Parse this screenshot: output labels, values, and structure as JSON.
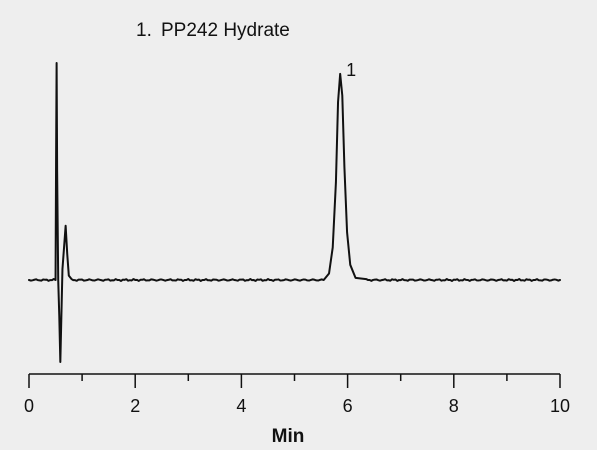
{
  "chart_data": {
    "type": "line",
    "title": "",
    "legend": [
      {
        "number": "1.",
        "name": "PP242 Hydrate"
      }
    ],
    "xlabel": "Min",
    "ylabel": "",
    "xlim": [
      0,
      10
    ],
    "x_major_ticks": [
      0,
      2,
      4,
      6,
      8,
      10
    ],
    "x_minor_ticks": [
      1,
      3,
      5,
      7,
      9
    ],
    "tick_labels": [
      "0",
      "2",
      "4",
      "6",
      "8",
      "10"
    ],
    "ylim": [
      -0.47,
      1.0
    ],
    "y_axis_visible": false,
    "grid": false,
    "line_color": "#111111",
    "baseline": 0,
    "features": [
      {
        "kind": "spike-up",
        "x": 0.52,
        "y": 1.0
      },
      {
        "kind": "dip",
        "x": 0.59,
        "y": -0.46
      },
      {
        "kind": "small-peak",
        "x": 0.69,
        "y": 0.25
      },
      {
        "kind": "peak",
        "x": 5.86,
        "y": 0.95,
        "label": "1"
      }
    ],
    "series": [
      {
        "x": [
          0.0,
          0.5,
          0.51,
          0.52,
          0.53,
          0.55,
          0.57,
          0.59,
          0.61,
          0.63,
          0.66,
          0.69,
          0.72,
          0.75,
          0.8,
          1.0,
          2.0,
          3.0,
          4.0,
          5.0,
          5.55,
          5.65,
          5.72,
          5.78,
          5.82,
          5.86,
          5.9,
          5.94,
          5.99,
          6.05,
          6.15,
          6.35,
          7.0,
          8.0,
          9.0,
          10.0
        ],
        "y": [
          0.0,
          0.0,
          0.55,
          1.0,
          0.5,
          0.0,
          -0.2,
          -0.46,
          -0.2,
          0.05,
          0.15,
          0.25,
          0.12,
          0.02,
          0.0,
          0.0,
          0.0,
          0.0,
          0.0,
          0.0,
          0.0,
          0.03,
          0.15,
          0.45,
          0.82,
          0.95,
          0.85,
          0.52,
          0.22,
          0.07,
          0.01,
          0.0,
          0.0,
          0.0,
          0.0,
          0.0
        ]
      }
    ]
  }
}
